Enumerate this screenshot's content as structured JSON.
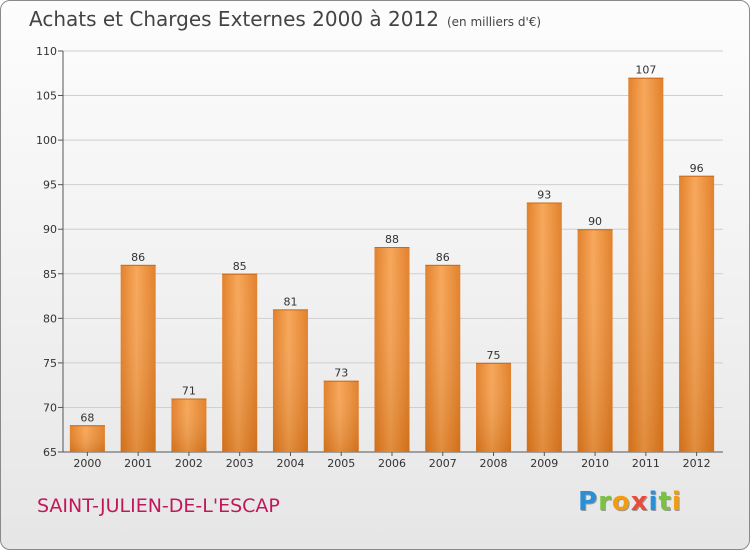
{
  "chart_data": {
    "type": "bar",
    "title": "Achats et Charges Externes 2000 à 2012",
    "subtitle": "(en milliers d'€)",
    "categories": [
      "2000",
      "2001",
      "2002",
      "2003",
      "2004",
      "2005",
      "2006",
      "2007",
      "2008",
      "2009",
      "2010",
      "2011",
      "2012"
    ],
    "values": [
      68,
      86,
      71,
      85,
      81,
      73,
      88,
      86,
      75,
      93,
      90,
      107,
      96
    ],
    "ylim": [
      65,
      110
    ],
    "yticks": [
      65,
      70,
      75,
      80,
      85,
      90,
      95,
      100,
      105,
      110
    ],
    "grid": true,
    "bar_color": "#f08c30"
  },
  "place_name": "SAINT-JULIEN-DE-L'ESCAP",
  "logo": {
    "letters": [
      {
        "char": "P",
        "color": "#2b8fd6"
      },
      {
        "char": "r",
        "color": "#7cc242"
      },
      {
        "char": "o",
        "color": "#f39c12"
      },
      {
        "char": "x",
        "color": "#e74c3c"
      },
      {
        "char": "i",
        "color": "#2b8fd6"
      },
      {
        "char": "t",
        "color": "#7cc242"
      },
      {
        "char": "i",
        "color": "#f39c12"
      }
    ]
  }
}
